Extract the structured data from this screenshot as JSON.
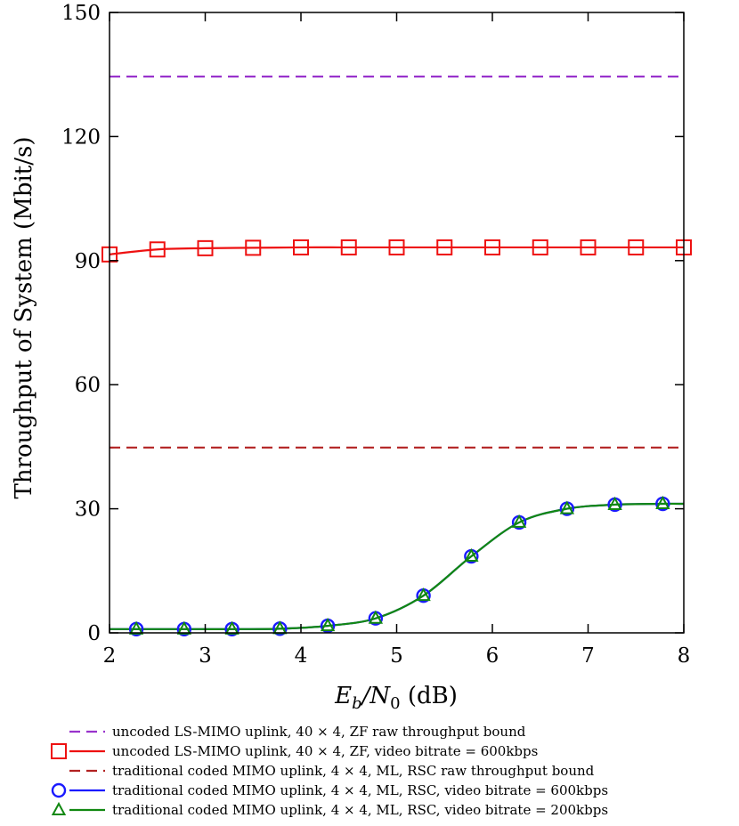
{
  "chart_data": {
    "type": "line",
    "title": "",
    "xlabel": "Eb/N0 (dB)",
    "xlabel_parts": {
      "main": "E",
      "sub": "b",
      "sep": "/N",
      "sub2": "0",
      "unit": " (dB)"
    },
    "ylabel": "Throughput of System (Mbit/s)",
    "xlim": [
      2,
      8
    ],
    "ylim": [
      0,
      150
    ],
    "xticks": [
      "2",
      "3",
      "4",
      "5",
      "6",
      "7",
      "8"
    ],
    "yticks": [
      "0",
      "30",
      "60",
      "90",
      "120",
      "150"
    ],
    "grid": false,
    "legend_position": "below",
    "series": [
      {
        "name": "uncoded LS-MIMO uplink, 40 × 4, ZF raw throughput bound",
        "color": "#9933cc",
        "style": "dashed",
        "marker": "none",
        "x": [
          2,
          8
        ],
        "y": [
          134.5,
          134.5
        ]
      },
      {
        "name": "uncoded LS-MIMO uplink, 40 × 4, ZF, video bitrate = 600kbps",
        "color": "#ee1111",
        "style": "solid",
        "marker": "square",
        "x": [
          2,
          2.5,
          3,
          3.5,
          4,
          4.5,
          5,
          5.5,
          6,
          6.5,
          7,
          7.5,
          8
        ],
        "y": [
          91.5,
          92.7,
          93.0,
          93.1,
          93.2,
          93.2,
          93.2,
          93.2,
          93.2,
          93.2,
          93.2,
          93.2,
          93.2
        ]
      },
      {
        "name": "traditional coded MIMO uplink, 4 × 4, ML, RSC raw throughput bound",
        "color": "#b22222",
        "style": "dashed",
        "marker": "none",
        "x": [
          2,
          8
        ],
        "y": [
          44.8,
          44.8
        ]
      },
      {
        "name": "traditional coded MIMO uplink, 4 × 4, ML, RSC, video bitrate = 600kbps",
        "color": "#1a1aff",
        "style": "solid",
        "marker": "circle",
        "x": [
          2.28,
          2.78,
          3.28,
          3.78,
          4.28,
          4.78,
          5.28,
          5.78,
          6.28,
          6.78,
          7.28,
          7.78
        ],
        "y": [
          0.9,
          0.9,
          0.9,
          1.0,
          1.7,
          3.5,
          9.0,
          18.5,
          26.7,
          30.0,
          31.0,
          31.2
        ]
      },
      {
        "name": "traditional coded MIMO uplink, 4 × 4, ML, RSC, video bitrate = 200kbps",
        "color": "#118811",
        "style": "solid",
        "marker": "triangle",
        "x": [
          2.28,
          2.78,
          3.28,
          3.78,
          4.28,
          4.78,
          5.28,
          5.78,
          6.28,
          6.78,
          7.28,
          7.78
        ],
        "y": [
          0.9,
          0.9,
          0.9,
          1.0,
          1.7,
          3.5,
          9.0,
          18.5,
          26.7,
          30.0,
          31.0,
          31.2
        ]
      }
    ]
  }
}
